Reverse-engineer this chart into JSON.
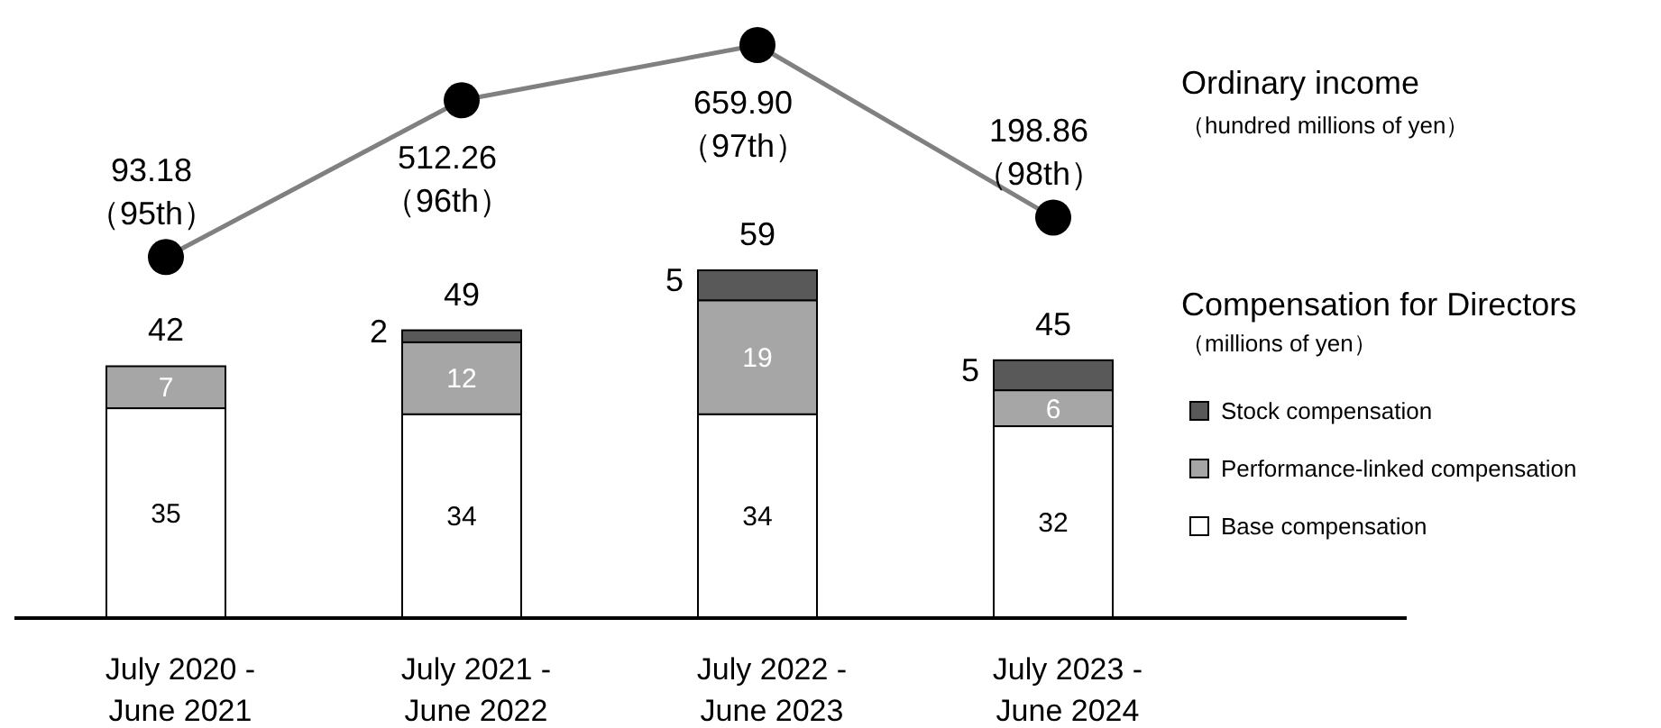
{
  "chart_data": [
    {
      "type": "bar",
      "stacked": true,
      "legend_title": "Compensation for Directors",
      "annotations": [
        "（millions of yen）"
      ],
      "legend": "right",
      "data_labels": true,
      "categories": [
        "July 2020 - June 2021",
        "July 2021 - June 2022",
        "July 2022 - June 2023",
        "July 2023 - June 2024"
      ],
      "series": [
        {
          "name": "Base compensation",
          "color": "#ffffff",
          "values": [
            35,
            34,
            34,
            32
          ]
        },
        {
          "name": "Performance-linked compensation",
          "color": "#a6a6a6",
          "values": [
            7,
            12,
            19,
            6
          ]
        },
        {
          "name": "Stock compensation",
          "color": "#595959",
          "values": [
            null,
            2,
            5,
            5
          ]
        }
      ],
      "totals": [
        "42",
        "49",
        "59",
        "45"
      ]
    },
    {
      "type": "line",
      "marker": "circle",
      "legend": "right",
      "annotations": [
        "（hundred millions of yen）"
      ],
      "categories": [
        null,
        null,
        null,
        null
      ],
      "series": [
        {
          "name": "Ordinary income",
          "color": "#808080",
          "values": [
            93.18,
            512.26,
            659.9,
            198.86
          ],
          "value_labels": [
            "93.18\n（95th）",
            "512.26\n（96th）",
            "659.90\n（97th）",
            "198.86\n（98th）"
          ]
        }
      ]
    }
  ]
}
